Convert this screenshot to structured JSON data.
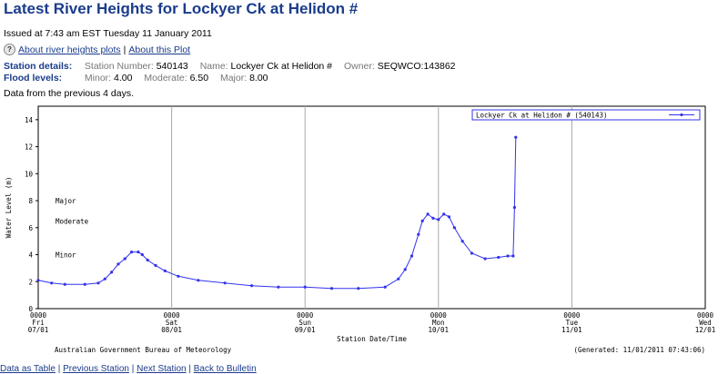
{
  "page": {
    "title": "Latest River Heights for Lockyer Ck at Helidon #",
    "issued": "Issued at 7:43 am EST Tuesday 11 January 2011",
    "link_about_plots": "About river heights plots",
    "link_separator": "|",
    "link_about_this": "About this Plot",
    "station_details_label": "Station details:",
    "station_number_label": "Station Number:",
    "station_number": "540143",
    "name_label": "Name:",
    "name": "Lockyer Ck at Helidon #",
    "owner_label": "Owner:",
    "owner": "SEQWCO:143862",
    "flood_levels_label": "Flood levels:",
    "minor_label": "Minor:",
    "minor": "4.00",
    "moderate_label": "Moderate:",
    "moderate": "6.50",
    "major_label": "Major:",
    "major": "8.00",
    "previous_days": "Data from the previous 4 days.",
    "bottom_links": [
      "Data as Table",
      "Previous Station",
      "Next Station",
      "Back to Bulletin"
    ]
  },
  "colors": {
    "title": "#1a3c8c",
    "series": "#3333ee",
    "grid": "#aaaaaa",
    "frame": "#000000"
  },
  "chart_data": {
    "type": "line",
    "ylabel": "Water Level (m)",
    "xlabel": "Station Date/Time",
    "legend": "Lockyer Ck at Helidon # (540143)",
    "legend_position": "top-right",
    "footer_left": "Australian Government Bureau of Meteorology",
    "footer_right": "(Generated: 11/01/2011 07:43:06)",
    "ylim": [
      0,
      15
    ],
    "yticks": [
      "0",
      "2",
      "4",
      "6",
      "8",
      "10",
      "12",
      "14"
    ],
    "xlim": [
      0,
      5
    ],
    "xticks": [
      {
        "x": 0,
        "time": "0000",
        "day": "Fri",
        "date": "07/01"
      },
      {
        "x": 1,
        "time": "0000",
        "day": "Sat",
        "date": "08/01"
      },
      {
        "x": 2,
        "time": "0000",
        "day": "Sun",
        "date": "09/01"
      },
      {
        "x": 3,
        "time": "0000",
        "day": "Mon",
        "date": "10/01"
      },
      {
        "x": 4,
        "time": "0000",
        "day": "Tue",
        "date": "11/01"
      },
      {
        "x": 5,
        "time": "0000",
        "day": "Wed",
        "date": "12/01"
      }
    ],
    "flood_levels": [
      {
        "name": "Major",
        "value": 8.0
      },
      {
        "name": "Moderate",
        "value": 6.5
      },
      {
        "name": "Minor",
        "value": 4.0
      }
    ],
    "series": [
      {
        "name": "Lockyer Ck at Helidon # (540143)",
        "x": [
          0.0,
          0.1,
          0.2,
          0.35,
          0.45,
          0.5,
          0.55,
          0.6,
          0.65,
          0.7,
          0.75,
          0.78,
          0.82,
          0.88,
          0.95,
          1.05,
          1.2,
          1.4,
          1.6,
          1.8,
          2.0,
          2.2,
          2.4,
          2.6,
          2.7,
          2.75,
          2.8,
          2.85,
          2.88,
          2.92,
          2.96,
          3.0,
          3.04,
          3.08,
          3.12,
          3.18,
          3.25,
          3.35,
          3.45,
          3.52,
          3.56,
          3.57,
          3.58
        ],
        "y": [
          2.1,
          1.9,
          1.8,
          1.8,
          1.9,
          2.2,
          2.7,
          3.3,
          3.7,
          4.2,
          4.2,
          4.0,
          3.6,
          3.2,
          2.8,
          2.4,
          2.1,
          1.9,
          1.7,
          1.6,
          1.6,
          1.5,
          1.5,
          1.6,
          2.2,
          2.9,
          3.9,
          5.5,
          6.5,
          7.0,
          6.7,
          6.6,
          7.0,
          6.8,
          6.0,
          5.0,
          4.1,
          3.7,
          3.8,
          3.9,
          3.9,
          7.5,
          12.7
        ]
      }
    ]
  }
}
